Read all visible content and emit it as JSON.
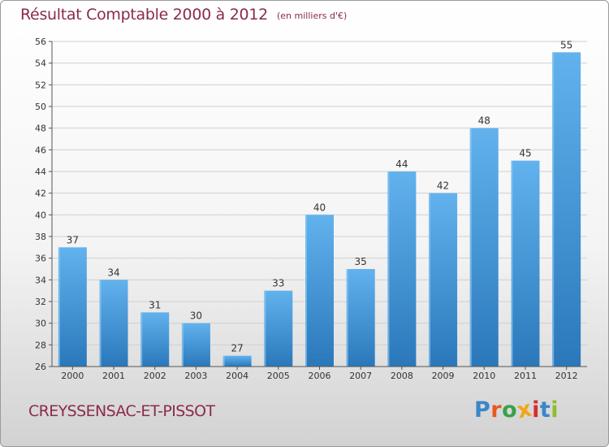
{
  "header": {
    "title": "Résultat Comptable 2000 à 2012",
    "subtitle": "(en milliers d'€)"
  },
  "footer": {
    "commune": "CREYSSENSAC-ET-PISSOT",
    "brand": "Proxiti",
    "brand_colors": [
      "#3a86c8",
      "#e85a1e",
      "#3aa14a",
      "#f0a519",
      "#d62d2d",
      "#3a86c8",
      "#8cbf2a"
    ]
  },
  "colors": {
    "bar_light": "#5eaeea",
    "bar_dark": "#2e7fc0",
    "grid": "#cfcfcf",
    "axis": "#555555",
    "text": "#333333",
    "accent": "#8b2a4e"
  },
  "chart_data": {
    "type": "bar",
    "title": "Résultat Comptable 2000 à 2012",
    "subtitle": "(en milliers d'€)",
    "xlabel": "",
    "ylabel": "",
    "categories": [
      "2000",
      "2001",
      "2002",
      "2003",
      "2004",
      "2005",
      "2006",
      "2007",
      "2008",
      "2009",
      "2010",
      "2011",
      "2012"
    ],
    "values": [
      37,
      34,
      31,
      30,
      27,
      33,
      40,
      35,
      44,
      42,
      48,
      45,
      55
    ],
    "ylim": [
      26,
      56
    ],
    "ytick_step": 2,
    "grid": true,
    "data_labels": true
  }
}
